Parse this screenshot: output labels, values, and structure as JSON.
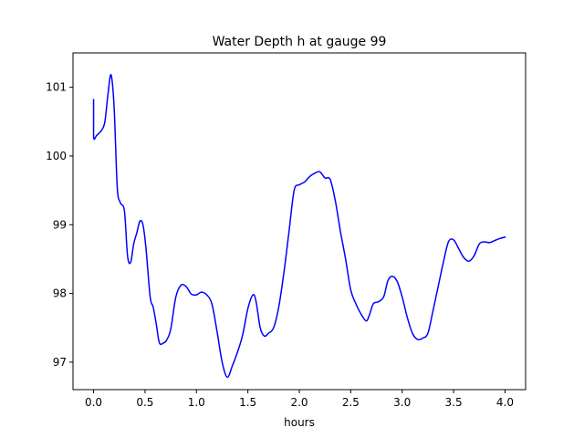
{
  "chart_data": {
    "type": "line",
    "title": "Water Depth h at gauge 99",
    "xlabel": "hours",
    "ylabel": "",
    "xlim": [
      -0.2,
      4.2
    ],
    "ylim": [
      96.6,
      101.5
    ],
    "x_ticks": [
      0.0,
      0.5,
      1.0,
      1.5,
      2.0,
      2.5,
      3.0,
      3.5,
      4.0
    ],
    "x_tick_labels": [
      "0.0",
      "0.5",
      "1.0",
      "1.5",
      "2.0",
      "2.5",
      "3.0",
      "3.5",
      "4.0"
    ],
    "y_ticks": [
      97,
      98,
      99,
      100,
      101
    ],
    "y_tick_labels": [
      "97",
      "98",
      "99",
      "100",
      "101"
    ],
    "grid": false,
    "series": [
      {
        "color": "#0000ff",
        "x": [
          0.0,
          0.0,
          0.03,
          0.08,
          0.11,
          0.14,
          0.17,
          0.2,
          0.23,
          0.26,
          0.3,
          0.33,
          0.36,
          0.39,
          0.42,
          0.45,
          0.48,
          0.51,
          0.55,
          0.58,
          0.61,
          0.64,
          0.68,
          0.71,
          0.75,
          0.8,
          0.85,
          0.9,
          0.95,
          1.0,
          1.05,
          1.1,
          1.15,
          1.2,
          1.25,
          1.3,
          1.35,
          1.4,
          1.45,
          1.5,
          1.55,
          1.58,
          1.62,
          1.66,
          1.7,
          1.75,
          1.8,
          1.85,
          1.9,
          1.95,
          2.0,
          2.05,
          2.1,
          2.15,
          2.2,
          2.25,
          2.3,
          2.35,
          2.4,
          2.45,
          2.5,
          2.55,
          2.6,
          2.65,
          2.68,
          2.72,
          2.77,
          2.82,
          2.86,
          2.9,
          2.95,
          3.0,
          3.05,
          3.1,
          3.15,
          3.2,
          3.25,
          3.3,
          3.35,
          3.4,
          3.45,
          3.5,
          3.55,
          3.6,
          3.65,
          3.7,
          3.75,
          3.8,
          3.85,
          3.9,
          3.95,
          4.0
        ],
        "values": [
          100.82,
          100.28,
          100.3,
          100.38,
          100.5,
          100.9,
          101.18,
          100.7,
          99.55,
          99.32,
          99.2,
          98.55,
          98.45,
          98.72,
          98.88,
          99.05,
          99.0,
          98.65,
          97.95,
          97.8,
          97.55,
          97.28,
          97.28,
          97.32,
          97.48,
          97.95,
          98.12,
          98.1,
          97.99,
          97.98,
          98.02,
          97.98,
          97.85,
          97.45,
          97.0,
          96.78,
          96.95,
          97.15,
          97.4,
          97.78,
          97.98,
          97.88,
          97.5,
          97.38,
          97.42,
          97.5,
          97.8,
          98.3,
          98.9,
          99.5,
          99.58,
          99.62,
          99.7,
          99.75,
          99.77,
          99.68,
          99.66,
          99.35,
          98.9,
          98.5,
          98.05,
          97.85,
          97.7,
          97.6,
          97.68,
          97.85,
          97.88,
          97.95,
          98.18,
          98.25,
          98.18,
          97.95,
          97.65,
          97.42,
          97.33,
          97.35,
          97.42,
          97.75,
          98.1,
          98.45,
          98.75,
          98.78,
          98.65,
          98.52,
          98.47,
          98.55,
          98.72,
          98.75,
          98.74,
          98.77,
          98.8,
          98.82
        ]
      }
    ]
  }
}
